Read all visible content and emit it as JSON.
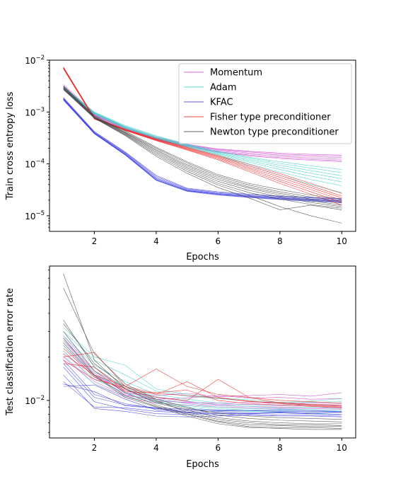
{
  "chart_data": [
    {
      "type": "line",
      "title": "",
      "xlabel": "Epochs",
      "ylabel": "Train cross entropy loss",
      "yscale": "log",
      "xlim": [
        0.55,
        10.45
      ],
      "ylim": [
        5e-06,
        0.01
      ],
      "x_ticks": [
        2,
        4,
        6,
        8,
        10
      ],
      "y_ticks": [
        1e-05,
        0.0001,
        0.001,
        0.01
      ],
      "y_tick_labels": [
        {
          "base": "10",
          "exp": "−5"
        },
        {
          "base": "10",
          "exp": "−4"
        },
        {
          "base": "10",
          "exp": "−3"
        },
        {
          "base": "10",
          "exp": "−2"
        }
      ],
      "grid": false,
      "legend_position": "upper-right",
      "legend": [
        {
          "label": "Momentum",
          "color": "#d048d0"
        },
        {
          "label": "Adam",
          "color": "#40d0c8"
        },
        {
          "label": "KFAC",
          "color": "#3838e0"
        },
        {
          "label": "Fisher type preconditioner",
          "color": "#f02020"
        },
        {
          "label": "Newton type preconditioner",
          "color": "#404040"
        }
      ],
      "x": [
        1,
        2,
        3,
        4,
        5,
        6,
        7,
        8,
        9,
        10
      ],
      "series": [
        {
          "name": "Momentum",
          "color": "#d048d0",
          "runs": [
            [
              0.0034,
              0.00095,
              0.00052,
              0.00033,
              0.00024,
              0.000195,
              0.000175,
              0.000162,
              0.000153,
              0.000148
            ],
            [
              0.0032,
              0.00092,
              0.0005,
              0.00032,
              0.000235,
              0.00019,
              0.00017,
              0.000155,
              0.000146,
              0.00014
            ],
            [
              0.003,
              0.0009,
              0.00049,
              0.000315,
              0.00023,
              0.000185,
              0.000162,
              0.000148,
              0.000138,
              0.000132
            ],
            [
              0.0029,
              0.00088,
              0.00048,
              0.00031,
              0.000225,
              0.000178,
              0.000155,
              0.00014,
              0.00013,
              0.000123
            ],
            [
              0.0028,
              0.00087,
              0.00047,
              0.0003,
              0.00022,
              0.000172,
              0.000148,
              0.000132,
              0.000122,
              0.000115
            ],
            [
              0.0027,
              0.00086,
              0.00046,
              0.000295,
              0.000215,
              0.000168,
              0.000143,
              0.000127,
              0.000117,
              0.00011
            ]
          ]
        },
        {
          "name": "Adam",
          "color": "#40d0c8",
          "runs": [
            [
              0.0031,
              0.001,
              0.00055,
              0.00035,
              0.00024,
              0.000175,
              0.000135,
              0.00011,
              9.2e-05,
              7.8e-05
            ],
            [
              0.003,
              0.00098,
              0.00053,
              0.00034,
              0.000235,
              0.00017,
              0.00013,
              0.000102,
              8.3e-05,
              6.8e-05
            ],
            [
              0.0029,
              0.00096,
              0.00052,
              0.00033,
              0.00023,
              0.000165,
              0.000122,
              9.4e-05,
              7.4e-05,
              5.9e-05
            ],
            [
              0.0029,
              0.00095,
              0.00051,
              0.00032,
              0.000225,
              0.00016,
              0.000115,
              8.6e-05,
              6.6e-05,
              5.2e-05
            ],
            [
              0.0028,
              0.00094,
              0.0005,
              0.000315,
              0.00022,
              0.000155,
              0.000108,
              7.8e-05,
              5.8e-05,
              4.5e-05
            ],
            [
              0.0028,
              0.00093,
              0.00049,
              0.00031,
              0.000215,
              0.00015,
              0.0001,
              7e-05,
              5e-05,
              3.8e-05
            ],
            [
              0.0027,
              0.00092,
              0.00048,
              0.000305,
              0.00021,
              0.000145,
              9.2e-05,
              6e-05,
              4e-05,
              2.8e-05
            ]
          ]
        },
        {
          "name": "KFAC",
          "color": "#3838e0",
          "runs": [
            [
              0.0019,
              0.00042,
              0.00017,
              6e-05,
              3.4e-05,
              2.9e-05,
              2.6e-05,
              2.4e-05,
              2.25e-05,
              2.15e-05
            ],
            [
              0.00185,
              0.00041,
              0.000165,
              5.7e-05,
              3.3e-05,
              2.8e-05,
              2.55e-05,
              2.35e-05,
              2.2e-05,
              2.1e-05
            ],
            [
              0.0018,
              0.0004,
              0.00016,
              5.4e-05,
              3.2e-05,
              2.7e-05,
              2.45e-05,
              2.25e-05,
              2.1e-05,
              2e-05
            ],
            [
              0.00178,
              0.000395,
              0.000155,
              5.2e-05,
              3.1e-05,
              2.65e-05,
              2.4e-05,
              2.2e-05,
              2.05e-05,
              1.95e-05
            ],
            [
              0.00175,
              0.00039,
              0.000152,
              5e-05,
              3.05e-05,
              2.6e-05,
              2.35e-05,
              2.15e-05,
              2e-05,
              1.9e-05
            ],
            [
              0.00172,
              0.000385,
              0.00015,
              4.9e-05,
              3e-05,
              2.55e-05,
              2.3e-05,
              2.1e-05,
              1.95e-05,
              1.85e-05
            ],
            [
              0.0017,
              0.00038,
              0.000148,
              4.8e-05,
              2.95e-05,
              2.5e-05,
              2.25e-05,
              2.05e-05,
              1.9e-05,
              1.8e-05
            ]
          ]
        },
        {
          "name": "Fisher type preconditioner",
          "color": "#f02020",
          "runs": [
            [
              0.0074,
              0.00078,
              0.00047,
              0.00031,
              0.00021,
              0.000145,
              9.8e-05,
              6.5e-05,
              4.2e-05,
              2.7e-05
            ],
            [
              0.0072,
              0.00077,
              0.00046,
              0.0003,
              0.000205,
              0.00014,
              9.2e-05,
              6e-05,
              3.8e-05,
              2.4e-05
            ],
            [
              0.0071,
              0.00076,
              0.000455,
              0.000295,
              0.0002,
              0.000135,
              8.6e-05,
              5.5e-05,
              3.5e-05,
              2.2e-05
            ],
            [
              0.007,
              0.00075,
              0.00045,
              0.00029,
              0.000195,
              0.00013,
              8.1e-05,
              5e-05,
              3.2e-05,
              2e-05
            ],
            [
              0.0069,
              0.00074,
              0.000445,
              0.000285,
              0.00019,
              0.000125,
              7.6e-05,
              4.6e-05,
              2.9e-05,
              1.8e-05
            ],
            [
              0.0068,
              0.00073,
              0.00044,
              0.00028,
              0.000185,
              0.00012,
              7.1e-05,
              4.2e-05,
              2.6e-05,
              1.6e-05
            ]
          ]
        },
        {
          "name": "Newton type preconditioner",
          "color": "#404040",
          "runs": [
            [
              0.0032,
              0.00085,
              0.00043,
              0.00021,
              0.00011,
              6.2e-05,
              4.2e-05,
              3.2e-05,
              2.5e-05,
              2.1e-05
            ],
            [
              0.0031,
              0.00083,
              0.00041,
              0.0002,
              0.000104,
              5.8e-05,
              3.9e-05,
              2.9e-05,
              2.3e-05,
              1.9e-05
            ],
            [
              0.003,
              0.00082,
              0.0004,
              0.000188,
              9.6e-05,
              5.4e-05,
              3.6e-05,
              2.7e-05,
              2.1e-05,
              1.75e-05
            ],
            [
              0.0029,
              0.0008,
              0.00039,
              0.00018,
              9e-05,
              5e-05,
              3.4e-05,
              2.5e-05,
              1.95e-05,
              1.6e-05
            ],
            [
              0.0029,
              0.00079,
              0.00038,
              0.00017,
              8.4e-05,
              4.6e-05,
              3.1e-05,
              2.3e-05,
              1.8e-05,
              1.5e-05
            ],
            [
              0.0028,
              0.00078,
              0.00037,
              0.00016,
              7.8e-05,
              4.2e-05,
              2.8e-05,
              2.1e-05,
              1.65e-05,
              1.4e-05
            ],
            [
              0.0028,
              0.00077,
              0.00036,
              0.00015,
              7.2e-05,
              3.9e-05,
              2.5e-05,
              1.5e-05,
              1e-05,
              7.2e-06
            ],
            [
              0.0027,
              0.00076,
              0.00035,
              0.00014,
              6.6e-05,
              3.5e-05,
              2.2e-05,
              1.3e-05,
              1.6e-05,
              1.3e-05
            ]
          ]
        }
      ]
    },
    {
      "type": "line",
      "title": "",
      "xlabel": "Epochs",
      "ylabel": "Test classification error rate",
      "yscale": "log",
      "xlim": [
        0.55,
        10.45
      ],
      "ylim": [
        0.0055,
        0.085
      ],
      "x_ticks": [
        2,
        4,
        6,
        8,
        10
      ],
      "y_ticks": [
        0.01
      ],
      "y_tick_labels": [
        {
          "base": "10",
          "exp": "−2"
        }
      ],
      "grid": false,
      "legend_position": "",
      "x": [
        1,
        2,
        3,
        4,
        5,
        6,
        7,
        8,
        9,
        10
      ],
      "series": [
        {
          "name": "Momentum",
          "color": "#d048d0",
          "runs": [
            [
              0.028,
              0.016,
              0.012,
              0.0105,
              0.0098,
              0.0094,
              0.0094,
              0.0092,
              0.0093,
              0.0091
            ],
            [
              0.026,
              0.015,
              0.0115,
              0.0102,
              0.0096,
              0.0092,
              0.0091,
              0.009,
              0.009,
              0.0089
            ],
            [
              0.024,
              0.0145,
              0.011,
              0.0099,
              0.0097,
              0.0096,
              0.0097,
              0.0095,
              0.0096,
              0.0095
            ],
            [
              0.022,
              0.0135,
              0.0108,
              0.0102,
              0.0104,
              0.0108,
              0.0104,
              0.0105,
              0.0102,
              0.0103
            ],
            [
              0.027,
              0.0155,
              0.0112,
              0.0108,
              0.0112,
              0.0106,
              0.0108,
              0.011,
              0.0107,
              0.0113
            ],
            [
              0.02,
              0.013,
              0.0105,
              0.0096,
              0.0093,
              0.009,
              0.0089,
              0.0088,
              0.0088,
              0.0087
            ]
          ]
        },
        {
          "name": "Adam",
          "color": "#40d0c8",
          "runs": [
            [
              0.032,
              0.02,
              0.0175,
              0.012,
              0.011,
              0.0104,
              0.0101,
              0.0097,
              0.0099,
              0.0103
            ],
            [
              0.03,
              0.019,
              0.015,
              0.0116,
              0.0107,
              0.0103,
              0.0099,
              0.0096,
              0.0097,
              0.0098
            ],
            [
              0.028,
              0.0175,
              0.0135,
              0.011,
              0.0102,
              0.0096,
              0.0093,
              0.0093,
              0.0094,
              0.0092
            ],
            [
              0.026,
              0.016,
              0.0125,
              0.0106,
              0.0099,
              0.0093,
              0.0091,
              0.0089,
              0.009,
              0.0088
            ],
            [
              0.024,
              0.015,
              0.012,
              0.0102,
              0.0095,
              0.009,
              0.0088,
              0.0087,
              0.0087,
              0.0085
            ],
            [
              0.022,
              0.014,
              0.0113,
              0.0099,
              0.0092,
              0.0088,
              0.0086,
              0.0085,
              0.0085,
              0.0083
            ],
            [
              0.0205,
              0.013,
              0.0107,
              0.0097,
              0.009,
              0.0085,
              0.0084,
              0.0083,
              0.0082,
              0.008
            ]
          ]
        },
        {
          "name": "KFAC",
          "color": "#3838e0",
          "runs": [
            [
              0.019,
              0.011,
              0.0095,
              0.0088,
              0.0085,
              0.0086,
              0.0085,
              0.0086,
              0.0085,
              0.0084
            ],
            [
              0.017,
              0.0098,
              0.0087,
              0.0081,
              0.008,
              0.0082,
              0.0081,
              0.0082,
              0.0081,
              0.008
            ],
            [
              0.015,
              0.0088,
              0.0084,
              0.0078,
              0.0077,
              0.0078,
              0.0079,
              0.0078,
              0.0078,
              0.0077
            ],
            [
              0.013,
              0.0115,
              0.0092,
              0.0088,
              0.0083,
              0.0081,
              0.0081,
              0.0082,
              0.0081,
              0.008
            ],
            [
              0.0125,
              0.0128,
              0.0102,
              0.0086,
              0.0083,
              0.0084,
              0.0082,
              0.0083,
              0.0082,
              0.0083
            ],
            [
              0.0135,
              0.009,
              0.0089,
              0.0084,
              0.0082,
              0.0079,
              0.008,
              0.0079,
              0.0079,
              0.0078
            ],
            [
              0.018,
              0.0105,
              0.0093,
              0.0089,
              0.0087,
              0.0085,
              0.0085,
              0.0084,
              0.0084,
              0.0083
            ]
          ]
        },
        {
          "name": "Fisher type preconditioner",
          "color": "#f02020",
          "runs": [
            [
              0.021,
              0.015,
              0.0125,
              0.0165,
              0.0125,
              0.011,
              0.0105,
              0.01,
              0.0098,
              0.0096
            ],
            [
              0.019,
              0.014,
              0.0122,
              0.011,
              0.0135,
              0.0105,
              0.0098,
              0.0097,
              0.0094,
              0.0093
            ],
            [
              0.023,
              0.0145,
              0.0118,
              0.0105,
              0.01,
              0.014,
              0.0105,
              0.0096,
              0.0093,
              0.0092
            ],
            [
              0.02,
              0.0215,
              0.0125,
              0.0112,
              0.0108,
              0.0104,
              0.0099,
              0.0095,
              0.0092,
              0.009
            ],
            [
              0.018,
              0.017,
              0.0115,
              0.0113,
              0.0118,
              0.01,
              0.0095,
              0.0093,
              0.0091,
              0.0089
            ]
          ]
        },
        {
          "name": "Newton type preconditioner",
          "color": "#404040",
          "runs": [
            [
              0.075,
              0.019,
              0.012,
              0.0098,
              0.0088,
              0.0082,
              0.0078,
              0.0076,
              0.0075,
              0.0074
            ],
            [
              0.06,
              0.021,
              0.013,
              0.0102,
              0.009,
              0.0079,
              0.0075,
              0.0073,
              0.0072,
              0.0071
            ],
            [
              0.036,
              0.017,
              0.012,
              0.0096,
              0.0086,
              0.0076,
              0.0072,
              0.007,
              0.0069,
              0.0069
            ],
            [
              0.034,
              0.018,
              0.0125,
              0.01,
              0.0083,
              0.0074,
              0.007,
              0.0068,
              0.0068,
              0.0067
            ],
            [
              0.03,
              0.016,
              0.0113,
              0.0093,
              0.0081,
              0.0072,
              0.0068,
              0.0067,
              0.0066,
              0.0066
            ],
            [
              0.027,
              0.015,
              0.0108,
              0.0091,
              0.008,
              0.0071,
              0.0066,
              0.0065,
              0.0065,
              0.0064
            ],
            [
              0.025,
              0.0148,
              0.0105,
              0.009,
              0.0078,
              0.0069,
              0.0065,
              0.0064,
              0.0063,
              0.0063
            ]
          ]
        }
      ]
    }
  ]
}
